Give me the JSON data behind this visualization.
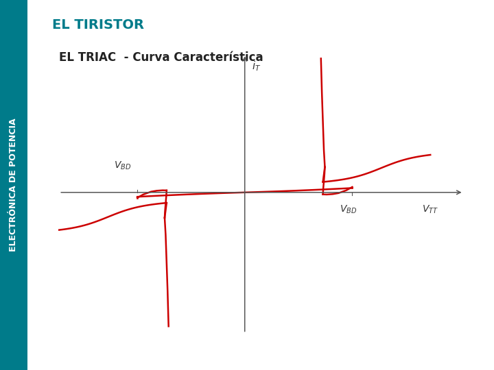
{
  "title": "EL TIRISTOR",
  "subtitle": "EL TRIAC  - Curva Característica",
  "sidebar_text": "ELECTRÓNICA DE POTENCIA",
  "sidebar_color": "#007b8a",
  "title_color": "#007b8a",
  "subtitle_color": "#222222",
  "curve_color": "#cc0000",
  "background_color": "#ffffff",
  "axis_color": "#555555",
  "text_color": "#333333"
}
